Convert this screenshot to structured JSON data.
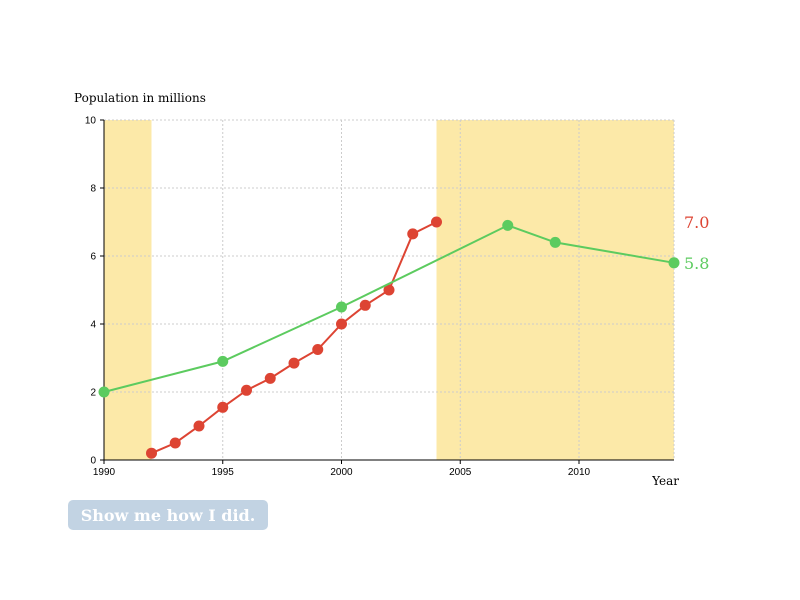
{
  "colors": {
    "highlight": "#fce9a8",
    "predicted": "#dd4433",
    "actual": "#5ccb5f",
    "button_bg": "#c2d3e3",
    "button_text": "#ffffff"
  },
  "button": {
    "label": "Show me how I did."
  },
  "chart_data": {
    "type": "line",
    "title": "",
    "ylabel": "Population in millions",
    "xlabel": "Year",
    "xlim": [
      1990,
      2014
    ],
    "ylim": [
      0,
      10
    ],
    "x_ticks": [
      1990,
      1995,
      2000,
      2005,
      2010
    ],
    "y_ticks": [
      0,
      2,
      4,
      6,
      8,
      10
    ],
    "grid": true,
    "highlight_ranges": [
      [
        1990,
        1992
      ],
      [
        2004,
        2014
      ]
    ],
    "series": [
      {
        "key": "predicted",
        "color": "#dd4433",
        "end_label": "7.0",
        "points": [
          [
            1992,
            0.2
          ],
          [
            1993,
            0.5
          ],
          [
            1994,
            1.0
          ],
          [
            1995,
            1.55
          ],
          [
            1996,
            2.05
          ],
          [
            1997,
            2.4
          ],
          [
            1998,
            2.85
          ],
          [
            1999,
            3.25
          ],
          [
            2000,
            4.0
          ],
          [
            2001,
            4.55
          ],
          [
            2002,
            5.0
          ],
          [
            2003,
            6.65
          ],
          [
            2004,
            7.0
          ]
        ]
      },
      {
        "key": "actual",
        "color": "#5ccb5f",
        "end_label": "5.8",
        "points": [
          [
            1990,
            2.0
          ],
          [
            1995,
            2.9
          ],
          [
            2000,
            4.5
          ],
          [
            2007,
            6.9
          ],
          [
            2009,
            6.4
          ],
          [
            2014,
            5.8
          ]
        ]
      }
    ]
  }
}
